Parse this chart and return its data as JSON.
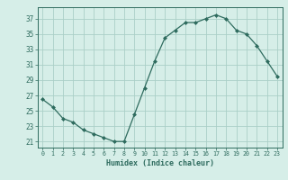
{
  "x": [
    0,
    1,
    2,
    3,
    4,
    5,
    6,
    7,
    8,
    9,
    10,
    11,
    12,
    13,
    14,
    15,
    16,
    17,
    18,
    19,
    20,
    21,
    22,
    23
  ],
  "y": [
    26.5,
    25.5,
    24.0,
    23.5,
    22.5,
    22.0,
    21.5,
    21.0,
    21.0,
    24.5,
    28.0,
    31.5,
    34.5,
    35.5,
    36.5,
    36.5,
    37.0,
    37.5,
    37.0,
    35.5,
    35.0,
    33.5,
    31.5,
    29.5
  ],
  "line_color": "#2e6b5e",
  "marker": "D",
  "marker_size": 2.0,
  "bg_color": "#d6eee8",
  "grid_color": "#aacfc7",
  "xlabel": "Humidex (Indice chaleur)",
  "ylabel_ticks": [
    21,
    23,
    25,
    27,
    29,
    31,
    33,
    35,
    37
  ],
  "xlim": [
    -0.5,
    23.5
  ],
  "ylim": [
    20.2,
    38.5
  ]
}
